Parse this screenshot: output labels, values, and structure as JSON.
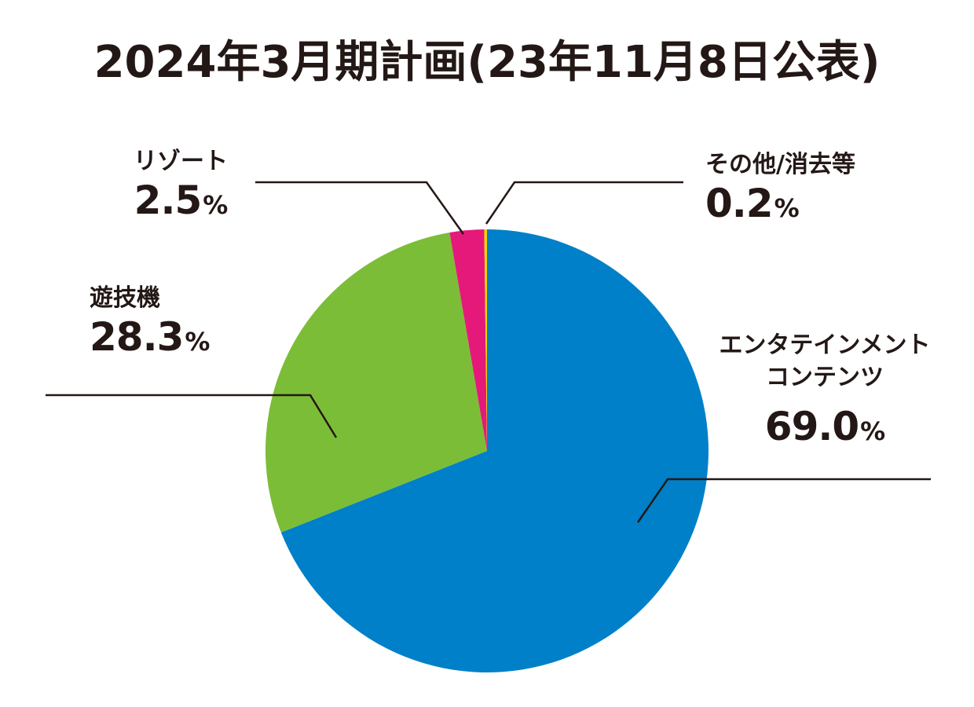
{
  "title": "2024年3月期計画(23年11月8日公表)",
  "chart_data": {
    "type": "pie",
    "title": "2024年3月期計画(23年11月8日公表)",
    "unit": "%",
    "slices": [
      {
        "name": "エンタテインメントコンテンツ",
        "name_lines": [
          "エンタテインメント",
          "コンテンツ"
        ],
        "value": 69.0,
        "value_label": "69.0",
        "color": "#0080C8"
      },
      {
        "name": "遊技機",
        "name_lines": [
          "遊技機"
        ],
        "value": 28.3,
        "value_label": "28.3",
        "color": "#7CBD38"
      },
      {
        "name": "リゾート",
        "name_lines": [
          "リゾート"
        ],
        "value": 2.5,
        "value_label": "2.5",
        "color": "#E4197A"
      },
      {
        "name": "その他/消去等",
        "name_lines": [
          "その他/消去等"
        ],
        "value": 0.2,
        "value_label": "0.2",
        "color": "#F5D300"
      }
    ]
  }
}
